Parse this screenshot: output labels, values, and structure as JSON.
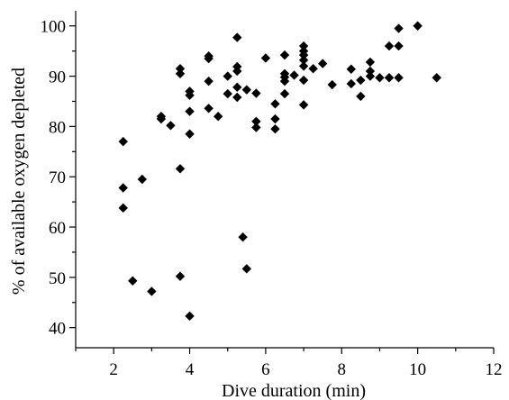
{
  "chart_data": {
    "type": "scatter",
    "title": "",
    "xlabel": "Dive duration (min)",
    "ylabel": "% of available oxygen depleted",
    "xlim": [
      1,
      12
    ],
    "ylim": [
      36,
      103
    ],
    "x_ticks": [
      2,
      4,
      6,
      8,
      10,
      12
    ],
    "y_ticks": [
      40,
      50,
      60,
      70,
      80,
      90,
      100
    ],
    "grid": false,
    "legend": "none",
    "marker": "diamond",
    "marker_color": "#000000",
    "series": [
      {
        "points": [
          [
            2.25,
            77.0
          ],
          [
            2.25,
            67.8
          ],
          [
            2.25,
            63.8
          ],
          [
            2.5,
            49.3
          ],
          [
            2.75,
            69.5
          ],
          [
            3.0,
            47.2
          ],
          [
            3.25,
            82.0
          ],
          [
            3.25,
            81.5
          ],
          [
            3.5,
            80.2
          ],
          [
            3.75,
            91.5
          ],
          [
            3.75,
            90.5
          ],
          [
            3.75,
            71.6
          ],
          [
            3.75,
            50.2
          ],
          [
            4.0,
            87.0
          ],
          [
            4.0,
            86.2
          ],
          [
            4.0,
            83.0
          ],
          [
            4.0,
            78.5
          ],
          [
            4.0,
            42.3
          ],
          [
            4.5,
            94.0
          ],
          [
            4.5,
            93.5
          ],
          [
            4.5,
            89.0
          ],
          [
            4.5,
            83.6
          ],
          [
            4.75,
            82.0
          ],
          [
            5.0,
            90.0
          ],
          [
            5.0,
            86.5
          ],
          [
            5.25,
            97.7
          ],
          [
            5.25,
            91.9
          ],
          [
            5.25,
            91.0
          ],
          [
            5.25,
            87.8
          ],
          [
            5.25,
            85.8
          ],
          [
            5.4,
            58.0
          ],
          [
            5.5,
            87.3
          ],
          [
            5.5,
            51.7
          ],
          [
            5.75,
            86.6
          ],
          [
            5.75,
            81.0
          ],
          [
            5.75,
            79.8
          ],
          [
            6.0,
            93.6
          ],
          [
            6.25,
            84.5
          ],
          [
            6.25,
            81.5
          ],
          [
            6.25,
            79.5
          ],
          [
            6.5,
            94.2
          ],
          [
            6.5,
            90.5
          ],
          [
            6.5,
            89.8
          ],
          [
            6.5,
            89.0
          ],
          [
            6.5,
            86.5
          ],
          [
            6.75,
            90.2
          ],
          [
            7.0,
            96.0
          ],
          [
            7.0,
            95.0
          ],
          [
            7.0,
            94.2
          ],
          [
            7.0,
            93.2
          ],
          [
            7.0,
            92.0
          ],
          [
            7.0,
            89.2
          ],
          [
            7.0,
            84.3
          ],
          [
            7.25,
            91.5
          ],
          [
            7.5,
            92.5
          ],
          [
            7.75,
            88.3
          ],
          [
            8.25,
            91.4
          ],
          [
            8.25,
            88.5
          ],
          [
            8.5,
            89.2
          ],
          [
            8.5,
            86.0
          ],
          [
            8.75,
            92.8
          ],
          [
            8.75,
            91.0
          ],
          [
            8.75,
            90.0
          ],
          [
            9.0,
            89.7
          ],
          [
            9.25,
            96.0
          ],
          [
            9.25,
            89.7
          ],
          [
            9.5,
            99.5
          ],
          [
            9.5,
            96.0
          ],
          [
            9.5,
            89.7
          ],
          [
            10.0,
            100.0
          ],
          [
            10.5,
            89.7
          ]
        ]
      }
    ]
  }
}
